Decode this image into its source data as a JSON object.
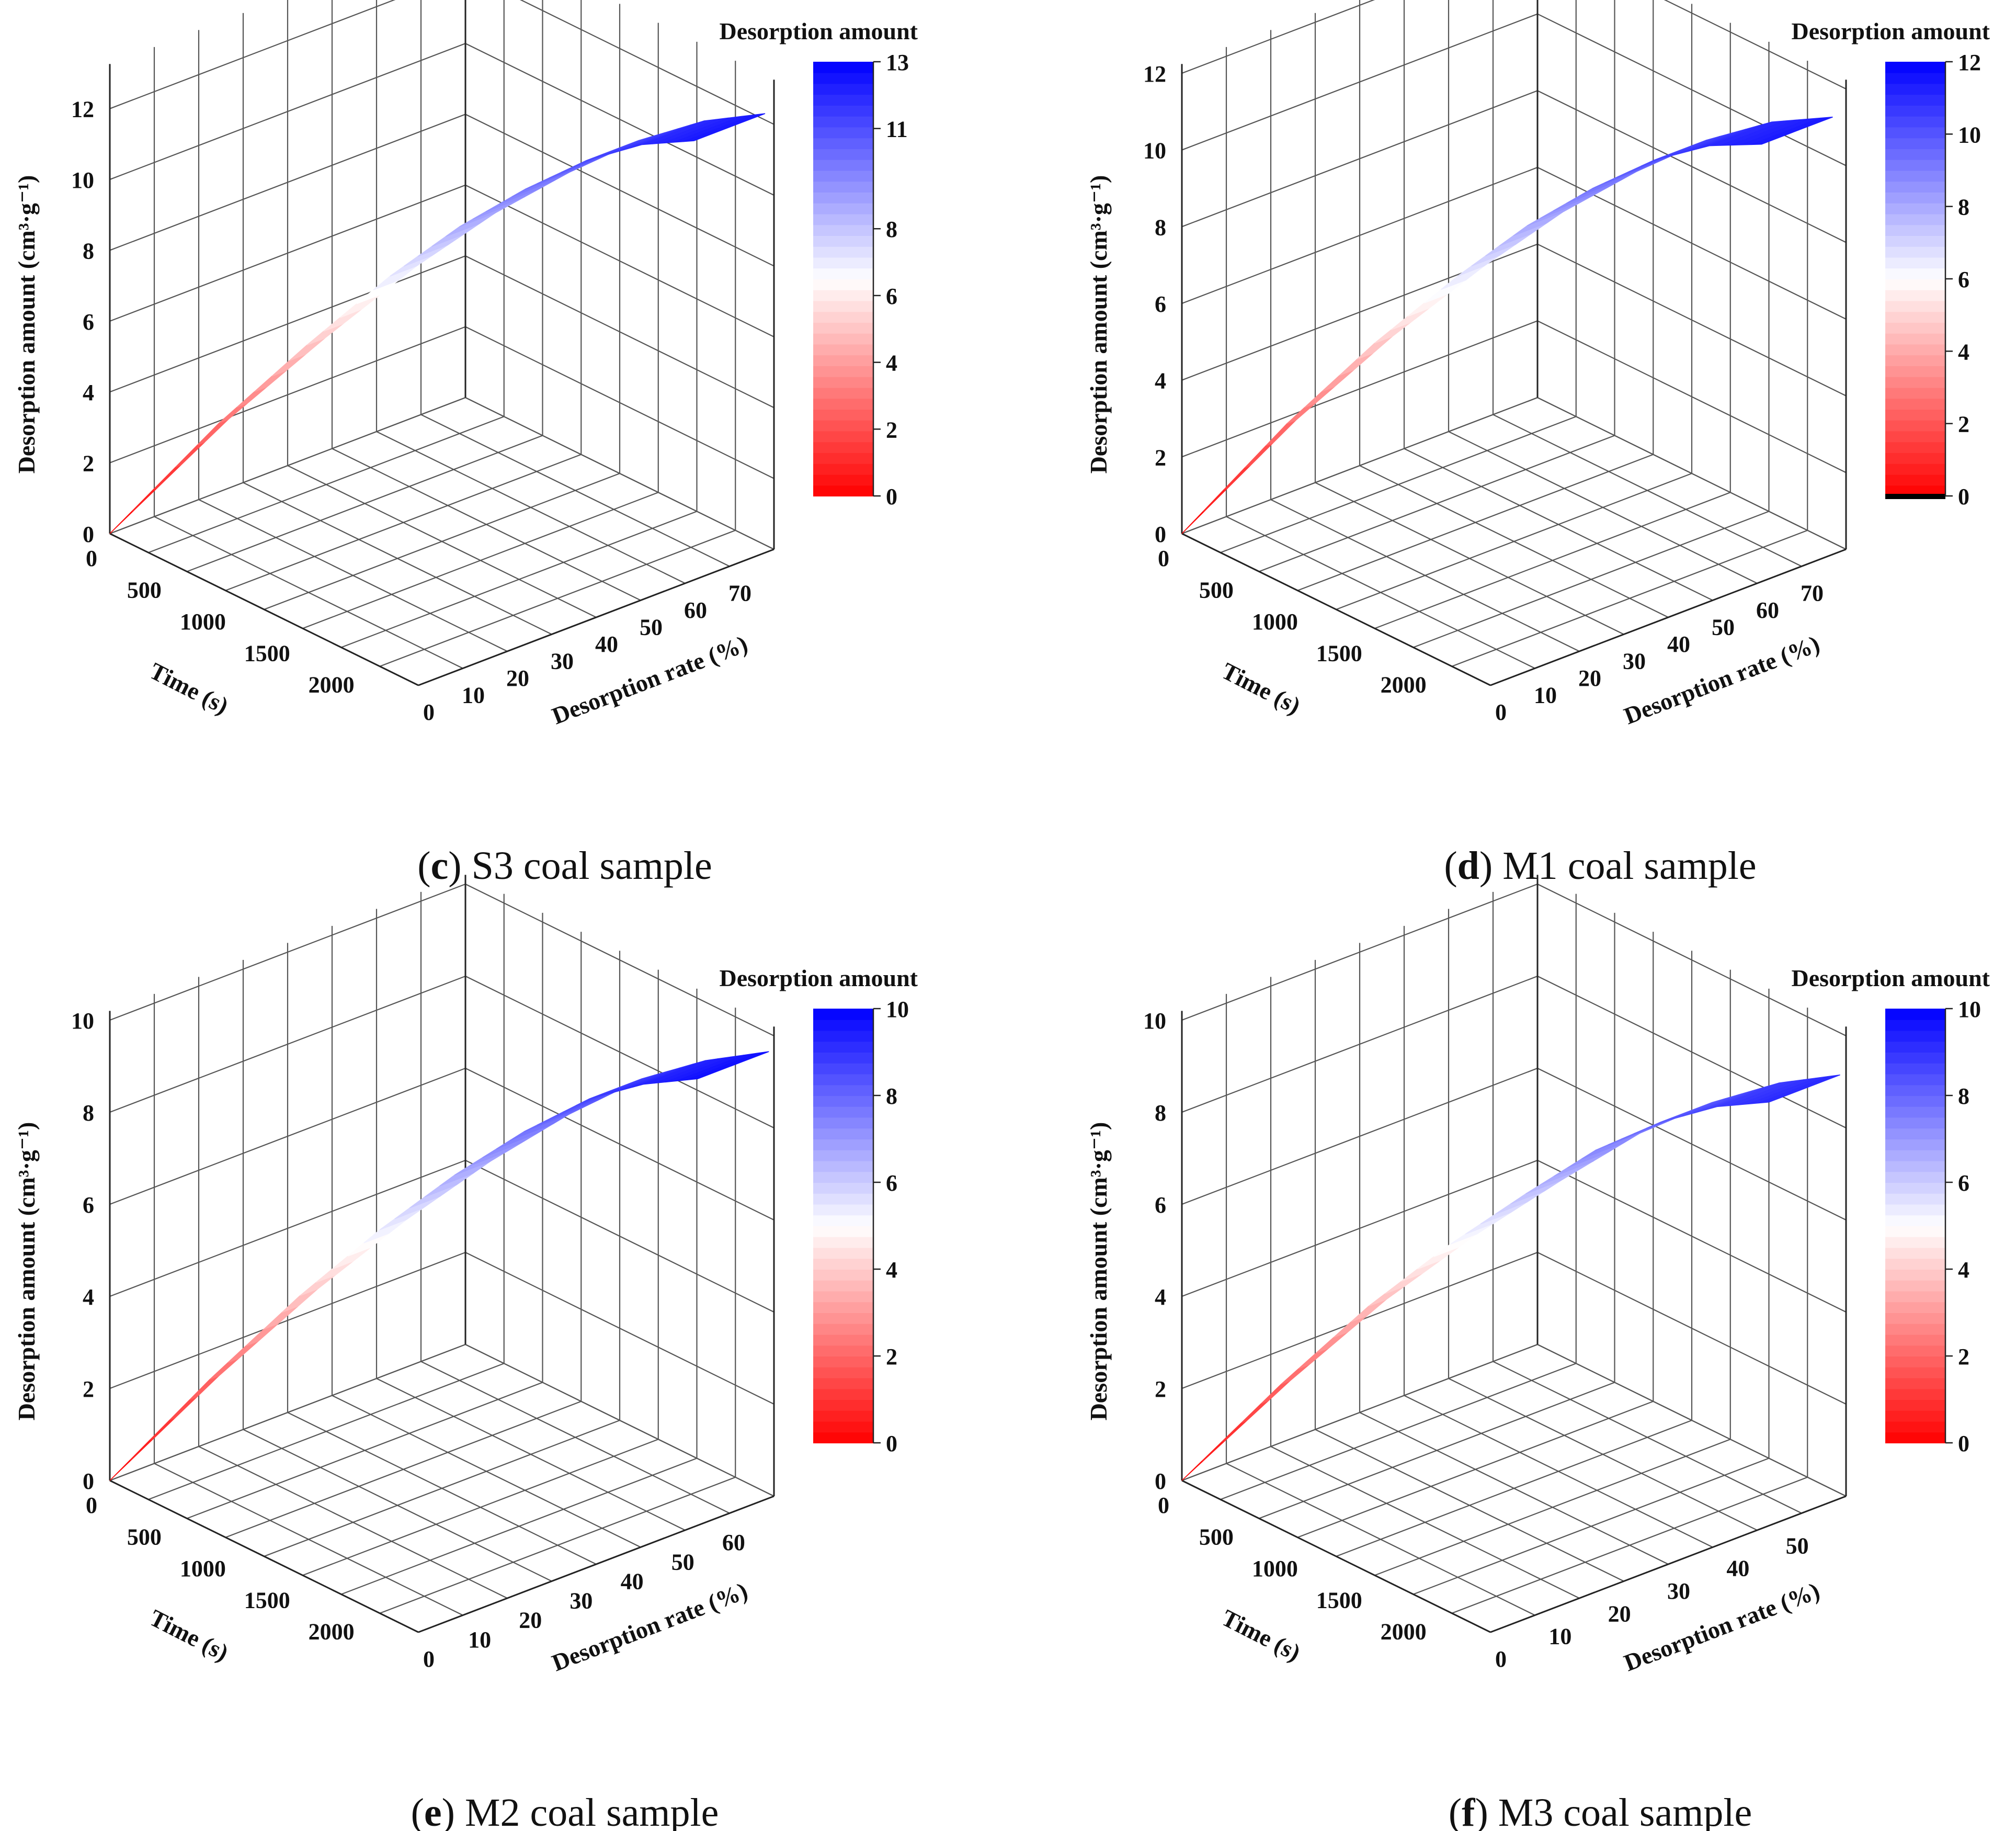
{
  "chart_data": [
    {
      "type": "surface",
      "caption": {
        "pre": "(",
        "letter": "c",
        "post": ") S3 coal sample"
      },
      "xlabel": "Time (s)",
      "ylabel": "Desorption rate (%)",
      "zlabel": "Desorption amount (cm³·g⁻¹)",
      "colorbar_title": "Desorption amount",
      "x_ticks": [
        "0",
        "500",
        "1000",
        "1500",
        "2000"
      ],
      "y_ticks": [
        "0",
        "10",
        "20",
        "30",
        "40",
        "50",
        "60",
        "70"
      ],
      "z_ticks": [
        "0",
        "2",
        "4",
        "6",
        "8",
        "10",
        "12"
      ],
      "colorbar_ticks": [
        "0",
        "2",
        "4",
        "6",
        "8",
        "11",
        "13"
      ],
      "colorbar_values": [
        0,
        2,
        4,
        6,
        8,
        11,
        13
      ],
      "xlim": [
        0,
        2400
      ],
      "ylim": [
        0,
        80
      ],
      "zlim": [
        0,
        13
      ],
      "clim": [
        0,
        13
      ],
      "curve": {
        "time": [
          0,
          300,
          600,
          900,
          1200,
          1500,
          1800,
          2100,
          2400
        ],
        "rate": [
          0,
          17,
          29,
          40,
          48,
          55,
          61,
          66,
          70
        ],
        "amount": [
          0,
          2.9,
          5.1,
          7.1,
          8.7,
          10.0,
          11.1,
          11.9,
          12.4
        ]
      }
    },
    {
      "type": "surface",
      "caption": {
        "pre": "(",
        "letter": "d",
        "post": ") M1 coal sample"
      },
      "xlabel": "Time (s)",
      "ylabel": "Desorption rate (%)",
      "zlabel": "Desorption amount (cm³·g⁻¹)",
      "colorbar_title": "Desorption amount",
      "x_ticks": [
        "0",
        "500",
        "1000",
        "1500",
        "2000"
      ],
      "y_ticks": [
        "0",
        "10",
        "20",
        "30",
        "40",
        "50",
        "60",
        "70"
      ],
      "z_ticks": [
        "0",
        "2",
        "4",
        "6",
        "8",
        "10",
        "12"
      ],
      "colorbar_ticks": [
        "0",
        "2",
        "4",
        "6",
        "8",
        "10",
        "12"
      ],
      "colorbar_values": [
        0,
        2,
        4,
        6,
        8,
        10,
        12
      ],
      "xlim": [
        0,
        2400
      ],
      "ylim": [
        0,
        80
      ],
      "zlim": [
        0,
        12
      ],
      "clim": [
        -0.2,
        12
      ],
      "curve": {
        "time": [
          0,
          300,
          600,
          900,
          1200,
          1500,
          1800,
          2100,
          2400
        ],
        "rate": [
          0,
          16,
          28,
          39,
          47,
          54,
          60,
          65,
          69
        ],
        "amount": [
          0,
          2.7,
          4.8,
          6.6,
          8.1,
          9.3,
          10.3,
          11.0,
          11.4
        ]
      }
    },
    {
      "type": "surface",
      "caption": {
        "pre": "(",
        "letter": "e",
        "post": ") M2 coal sample"
      },
      "xlabel": "Time (s)",
      "ylabel": "Desorption rate (%)",
      "zlabel": "Desorption amount (cm³·g⁻¹)",
      "colorbar_title": "Desorption amount",
      "x_ticks": [
        "0",
        "500",
        "1000",
        "1500",
        "2000"
      ],
      "y_ticks": [
        "0",
        "10",
        "20",
        "30",
        "40",
        "50",
        "60"
      ],
      "z_ticks": [
        "0",
        "2",
        "4",
        "6",
        "8",
        "10"
      ],
      "colorbar_ticks": [
        "0",
        "2",
        "4",
        "6",
        "8",
        "10"
      ],
      "colorbar_values": [
        0,
        2,
        4,
        6,
        8,
        10
      ],
      "xlim": [
        0,
        2400
      ],
      "ylim": [
        0,
        70
      ],
      "zlim": [
        0,
        10
      ],
      "clim": [
        0,
        10
      ],
      "curve": {
        "time": [
          0,
          300,
          600,
          900,
          1200,
          1500,
          1800,
          2100,
          2400
        ],
        "rate": [
          0,
          13,
          24,
          33,
          41,
          48,
          54,
          58,
          62
        ],
        "amount": [
          0,
          2.1,
          3.9,
          5.4,
          6.7,
          7.8,
          8.7,
          9.3,
          9.7
        ]
      }
    },
    {
      "type": "surface",
      "caption": {
        "pre": "(",
        "letter": "f",
        "post": ") M3 coal sample"
      },
      "xlabel": "Time (s)",
      "ylabel": "Desorption rate (%)",
      "zlabel": "Desorption amount (cm³·g⁻¹)",
      "colorbar_title": "Desorption amount",
      "x_ticks": [
        "0",
        "500",
        "1000",
        "1500",
        "2000"
      ],
      "y_ticks": [
        "0",
        "10",
        "20",
        "30",
        "40",
        "50"
      ],
      "z_ticks": [
        "0",
        "2",
        "4",
        "6",
        "8",
        "10"
      ],
      "colorbar_ticks": [
        "0",
        "2",
        "4",
        "6",
        "8",
        "10"
      ],
      "colorbar_values": [
        0,
        2,
        4,
        6,
        8,
        10
      ],
      "xlim": [
        0,
        2400
      ],
      "ylim": [
        0,
        60
      ],
      "zlim": [
        0,
        10
      ],
      "clim": [
        0,
        10
      ],
      "curve": {
        "time": [
          0,
          300,
          600,
          900,
          1200,
          1500,
          1800,
          2100,
          2400
        ],
        "rate": [
          0,
          11,
          20,
          28,
          35,
          41,
          46,
          50,
          53
        ],
        "amount": [
          0,
          2.0,
          3.7,
          5.1,
          6.3,
          7.4,
          8.2,
          8.8,
          9.2
        ]
      }
    }
  ],
  "colors": {
    "low": "#ff0000",
    "mid": "#ffffff",
    "high": "#0000ff",
    "grid": "#555555",
    "axis": "#222222"
  }
}
